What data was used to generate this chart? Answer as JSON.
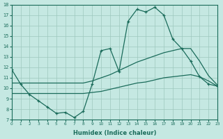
{
  "xlabel": "Humidex (Indice chaleur)",
  "xlim": [
    0,
    23
  ],
  "ylim": [
    7,
    18
  ],
  "xticks": [
    0,
    1,
    2,
    3,
    4,
    5,
    6,
    7,
    8,
    9,
    10,
    11,
    12,
    13,
    14,
    15,
    16,
    17,
    18,
    19,
    20,
    21,
    22,
    23
  ],
  "yticks": [
    7,
    8,
    9,
    10,
    11,
    12,
    13,
    14,
    15,
    16,
    17,
    18
  ],
  "bg_color": "#c5e8e2",
  "line_color": "#1a6b5a",
  "grid_color": "#9dc8be",
  "line1_x": [
    0,
    1,
    2,
    3,
    4,
    5,
    6,
    7,
    8,
    9,
    10,
    11,
    12,
    13,
    14,
    15,
    16,
    17,
    18,
    19,
    20,
    21,
    22,
    23
  ],
  "line1_y": [
    11.8,
    10.4,
    9.4,
    8.8,
    8.2,
    7.6,
    7.7,
    7.2,
    7.8,
    10.4,
    13.6,
    13.8,
    11.6,
    16.4,
    17.55,
    17.3,
    17.75,
    17.0,
    14.7,
    13.8,
    12.6,
    11.1,
    10.4,
    10.2
  ],
  "line2_x": [
    0,
    1,
    2,
    3,
    4,
    5,
    6,
    7,
    8,
    9,
    10,
    11,
    12,
    13,
    14,
    15,
    16,
    17,
    18,
    19,
    20,
    21,
    22,
    23
  ],
  "line2_y": [
    10.5,
    10.5,
    10.5,
    10.5,
    10.5,
    10.5,
    10.5,
    10.5,
    10.5,
    10.7,
    11.0,
    11.3,
    11.7,
    12.1,
    12.5,
    12.8,
    13.1,
    13.4,
    13.6,
    13.8,
    13.8,
    12.6,
    11.2,
    10.3
  ],
  "line3_x": [
    0,
    1,
    2,
    3,
    4,
    5,
    6,
    7,
    8,
    9,
    10,
    11,
    12,
    13,
    14,
    15,
    16,
    17,
    18,
    19,
    20,
    21,
    22,
    23
  ],
  "line3_y": [
    9.5,
    9.5,
    9.5,
    9.5,
    9.5,
    9.5,
    9.5,
    9.5,
    9.5,
    9.6,
    9.7,
    9.9,
    10.1,
    10.3,
    10.5,
    10.6,
    10.8,
    11.0,
    11.1,
    11.2,
    11.3,
    11.1,
    10.7,
    10.2
  ]
}
